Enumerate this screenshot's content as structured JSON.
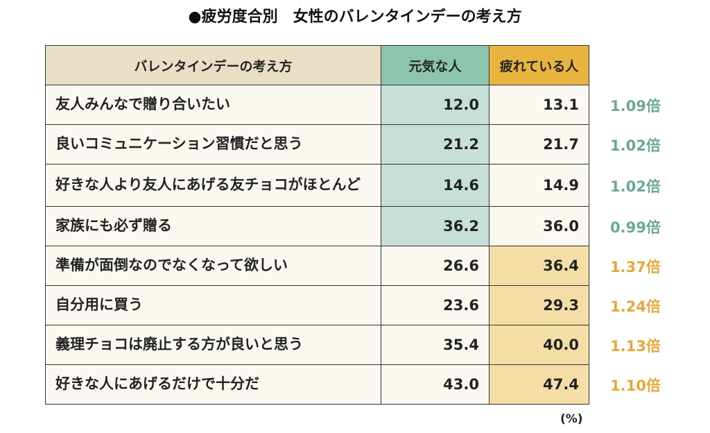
{
  "title": "●疲労度合別　女性のバレンタインデーの考え方",
  "table": {
    "header": [
      "バレンタインデーの考え方",
      "元気な人",
      "疲れている人"
    ],
    "rows": [
      [
        "友人みんなで贈り合いたい",
        "12.0",
        "13.1",
        "1.09倍"
      ],
      [
        "良いコミュニケーション習慣だと思う",
        "21.2",
        "21.7",
        "1.02倍"
      ],
      [
        "好きな人より友人にあげる友チョコがほとんど",
        "14.6",
        "14.9",
        "1.02倍"
      ],
      [
        "家族にも必ず贈る",
        "36.2",
        "36.0",
        "0.99倍"
      ],
      [
        "準備が面倒なのでなくなって欲しい",
        "26.6",
        "36.4",
        "1.37倍"
      ],
      [
        "自分用に買う",
        "23.6",
        "29.3",
        "1.24倍"
      ],
      [
        "義理チョコは廃止する方が良いと思う",
        "35.4",
        "40.0",
        "1.13倍"
      ],
      [
        "好きな人にあげるだけで十分だ",
        "43.0",
        "47.4",
        "1.10倍"
      ]
    ],
    "unit": "(%)"
  }
}
